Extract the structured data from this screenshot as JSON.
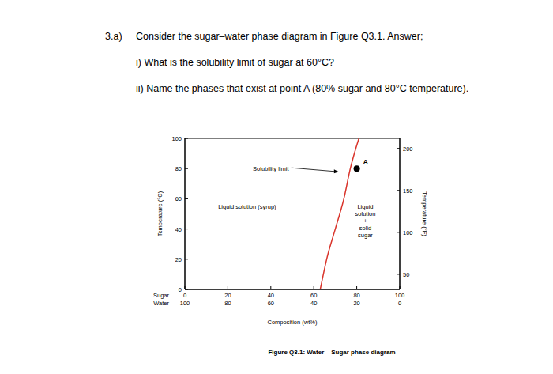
{
  "question": {
    "number": "3.a)",
    "intro": "Consider the sugar–water phase diagram in Figure Q3.1. Answer;",
    "items": [
      "i) What is the solubility limit of sugar at 60°C?",
      "ii) Name the phases that exist at point A (80% sugar and 80°C temperature)."
    ]
  },
  "caption": "Figure Q3.1: Water – Sugar phase diagram",
  "chart_data": {
    "type": "line",
    "xlabel": "Composition (wt%)",
    "ylabel": "Temperature (°C)",
    "y2label": "Temperature (°F)",
    "x": [
      63,
      66,
      70,
      74,
      77,
      81
    ],
    "values": [
      0,
      20,
      40,
      60,
      80,
      100
    ],
    "color": "#d9342b",
    "xlim": [
      0,
      100
    ],
    "xticks": [
      0,
      20,
      40,
      60,
      80,
      100
    ],
    "x_row_labels": [
      "Sugar",
      "Water"
    ],
    "water_ticks": [
      100,
      80,
      60,
      40,
      20,
      0
    ],
    "ylim": [
      0,
      100
    ],
    "yticks": [
      0,
      20,
      40,
      60,
      80,
      100
    ],
    "y2lim": [
      32,
      212
    ],
    "y2ticks": [
      50,
      100,
      150,
      200
    ],
    "points": [
      {
        "label": "A",
        "x": 80,
        "y": 80,
        "color": "#000000"
      }
    ],
    "annotations": [
      {
        "text": "Solubility limit",
        "x": 40,
        "y": 80
      },
      {
        "text": "Liquid solution (syrup)",
        "x": 29,
        "y": 55
      },
      {
        "lines": [
          "Liquid",
          "solution",
          "+",
          "solid",
          "sugar"
        ],
        "x": 84,
        "y": 44
      }
    ]
  }
}
